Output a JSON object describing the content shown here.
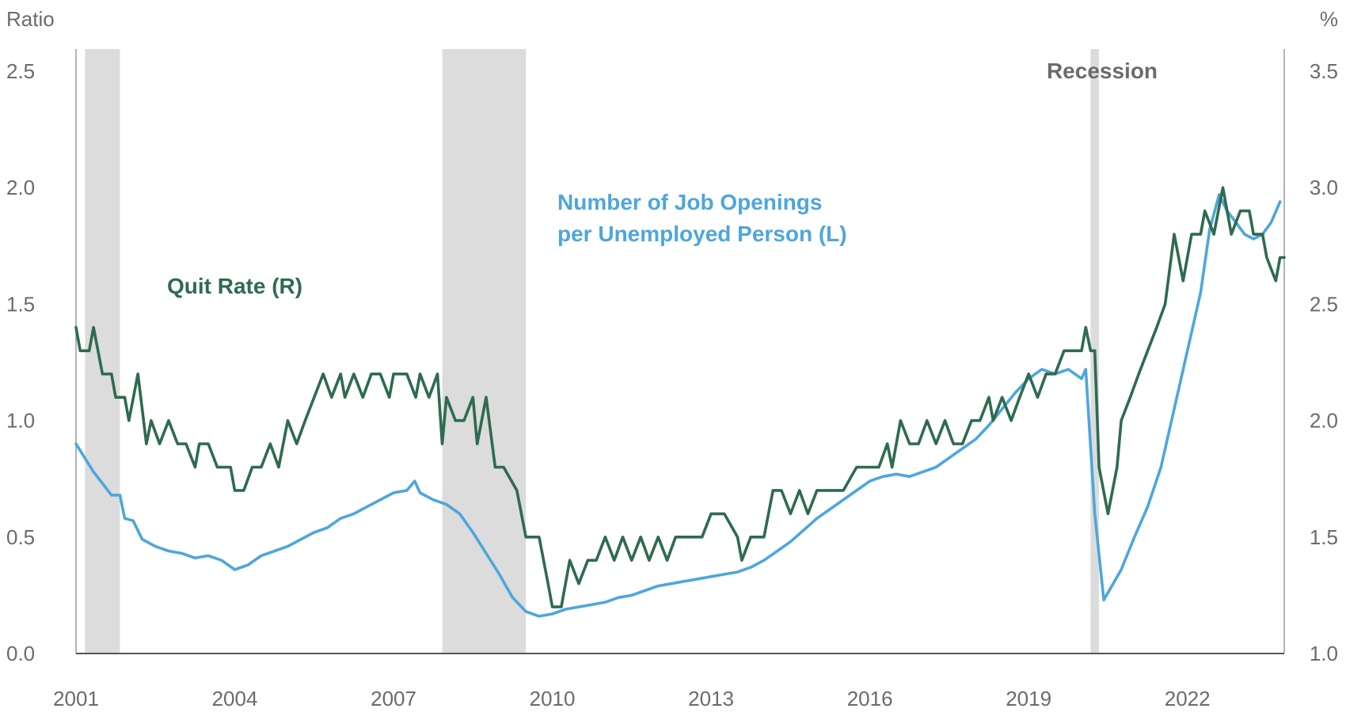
{
  "chart_data": {
    "type": "line",
    "title": "",
    "xlabel": "",
    "left_axis": {
      "unit_label": "Ratio",
      "ylim": [
        0.0,
        2.5
      ],
      "ticks": [
        "0.0",
        "0.5",
        "1.0",
        "1.5",
        "2.0",
        "2.5"
      ]
    },
    "right_axis": {
      "unit_label": "%",
      "ylim": [
        1.0,
        3.5
      ],
      "ticks": [
        "1.0",
        "1.5",
        "2.0",
        "2.5",
        "3.0",
        "3.5"
      ]
    },
    "x_axis": {
      "range": [
        2001.0,
        2023.83
      ],
      "ticks": [
        "2001",
        "2004",
        "2007",
        "2010",
        "2013",
        "2016",
        "2019",
        "2022"
      ]
    },
    "recession_label": "Recession",
    "recessions": [
      [
        2001.17,
        2001.83
      ],
      [
        2007.92,
        2009.5
      ],
      [
        2020.17,
        2020.33
      ]
    ],
    "colors": {
      "quit_rate": "#2e6b4f",
      "job_openings": "#4ea6dc",
      "recession": "#dcdcdc",
      "axis": "#6b6b6b"
    },
    "annotations": {
      "quit_rate": "Quit Rate (R)",
      "job_openings_line1": "Number of Job Openings",
      "job_openings_line2": "per Unemployed Person (L)"
    },
    "series": [
      {
        "name": "Number of Job Openings per Unemployed Person (L)",
        "axis": "left",
        "points": [
          [
            2001.0,
            0.9
          ],
          [
            2001.33,
            0.78
          ],
          [
            2001.67,
            0.68
          ],
          [
            2001.83,
            0.68
          ],
          [
            2001.92,
            0.58
          ],
          [
            2002.08,
            0.57
          ],
          [
            2002.25,
            0.49
          ],
          [
            2002.5,
            0.46
          ],
          [
            2002.75,
            0.44
          ],
          [
            2003.0,
            0.43
          ],
          [
            2003.25,
            0.41
          ],
          [
            2003.5,
            0.42
          ],
          [
            2003.75,
            0.4
          ],
          [
            2004.0,
            0.36
          ],
          [
            2004.25,
            0.38
          ],
          [
            2004.5,
            0.42
          ],
          [
            2004.75,
            0.44
          ],
          [
            2005.0,
            0.46
          ],
          [
            2005.25,
            0.49
          ],
          [
            2005.5,
            0.52
          ],
          [
            2005.75,
            0.54
          ],
          [
            2006.0,
            0.58
          ],
          [
            2006.25,
            0.6
          ],
          [
            2006.5,
            0.63
          ],
          [
            2006.75,
            0.66
          ],
          [
            2007.0,
            0.69
          ],
          [
            2007.25,
            0.7
          ],
          [
            2007.4,
            0.74
          ],
          [
            2007.5,
            0.69
          ],
          [
            2007.75,
            0.66
          ],
          [
            2008.0,
            0.64
          ],
          [
            2008.25,
            0.6
          ],
          [
            2008.5,
            0.52
          ],
          [
            2008.75,
            0.43
          ],
          [
            2009.0,
            0.34
          ],
          [
            2009.25,
            0.24
          ],
          [
            2009.5,
            0.18
          ],
          [
            2009.75,
            0.16
          ],
          [
            2010.0,
            0.17
          ],
          [
            2010.25,
            0.19
          ],
          [
            2010.5,
            0.2
          ],
          [
            2010.75,
            0.21
          ],
          [
            2011.0,
            0.22
          ],
          [
            2011.25,
            0.24
          ],
          [
            2011.5,
            0.25
          ],
          [
            2011.75,
            0.27
          ],
          [
            2012.0,
            0.29
          ],
          [
            2012.25,
            0.3
          ],
          [
            2012.5,
            0.31
          ],
          [
            2012.75,
            0.32
          ],
          [
            2013.0,
            0.33
          ],
          [
            2013.25,
            0.34
          ],
          [
            2013.5,
            0.35
          ],
          [
            2013.75,
            0.37
          ],
          [
            2014.0,
            0.4
          ],
          [
            2014.25,
            0.44
          ],
          [
            2014.5,
            0.48
          ],
          [
            2014.75,
            0.53
          ],
          [
            2015.0,
            0.58
          ],
          [
            2015.25,
            0.62
          ],
          [
            2015.5,
            0.66
          ],
          [
            2015.75,
            0.7
          ],
          [
            2016.0,
            0.74
          ],
          [
            2016.25,
            0.76
          ],
          [
            2016.5,
            0.77
          ],
          [
            2016.75,
            0.76
          ],
          [
            2017.0,
            0.78
          ],
          [
            2017.25,
            0.8
          ],
          [
            2017.5,
            0.84
          ],
          [
            2017.75,
            0.88
          ],
          [
            2018.0,
            0.92
          ],
          [
            2018.25,
            0.98
          ],
          [
            2018.5,
            1.05
          ],
          [
            2018.75,
            1.12
          ],
          [
            2019.0,
            1.18
          ],
          [
            2019.25,
            1.22
          ],
          [
            2019.5,
            1.2
          ],
          [
            2019.75,
            1.22
          ],
          [
            2020.0,
            1.18
          ],
          [
            2020.08,
            1.22
          ],
          [
            2020.25,
            0.6
          ],
          [
            2020.42,
            0.23
          ],
          [
            2020.75,
            0.36
          ],
          [
            2021.0,
            0.5
          ],
          [
            2021.25,
            0.63
          ],
          [
            2021.5,
            0.8
          ],
          [
            2021.75,
            1.05
          ],
          [
            2022.0,
            1.3
          ],
          [
            2022.25,
            1.55
          ],
          [
            2022.42,
            1.82
          ],
          [
            2022.6,
            1.97
          ],
          [
            2022.75,
            1.9
          ],
          [
            2022.92,
            1.85
          ],
          [
            2023.08,
            1.8
          ],
          [
            2023.25,
            1.78
          ],
          [
            2023.42,
            1.8
          ],
          [
            2023.58,
            1.85
          ],
          [
            2023.75,
            1.94
          ]
        ]
      },
      {
        "name": "Quit Rate (R)",
        "axis": "right",
        "points": [
          [
            2001.0,
            2.4
          ],
          [
            2001.08,
            2.3
          ],
          [
            2001.25,
            2.3
          ],
          [
            2001.33,
            2.4
          ],
          [
            2001.5,
            2.2
          ],
          [
            2001.67,
            2.2
          ],
          [
            2001.75,
            2.1
          ],
          [
            2001.92,
            2.1
          ],
          [
            2002.0,
            2.0
          ],
          [
            2002.17,
            2.2
          ],
          [
            2002.33,
            1.9
          ],
          [
            2002.42,
            2.0
          ],
          [
            2002.58,
            1.9
          ],
          [
            2002.75,
            2.0
          ],
          [
            2002.92,
            1.9
          ],
          [
            2003.08,
            1.9
          ],
          [
            2003.25,
            1.8
          ],
          [
            2003.33,
            1.9
          ],
          [
            2003.5,
            1.9
          ],
          [
            2003.67,
            1.8
          ],
          [
            2003.92,
            1.8
          ],
          [
            2004.0,
            1.7
          ],
          [
            2004.17,
            1.7
          ],
          [
            2004.33,
            1.8
          ],
          [
            2004.5,
            1.8
          ],
          [
            2004.67,
            1.9
          ],
          [
            2004.83,
            1.8
          ],
          [
            2005.0,
            2.0
          ],
          [
            2005.17,
            1.9
          ],
          [
            2005.33,
            2.0
          ],
          [
            2005.5,
            2.1
          ],
          [
            2005.67,
            2.2
          ],
          [
            2005.83,
            2.1
          ],
          [
            2006.0,
            2.2
          ],
          [
            2006.08,
            2.1
          ],
          [
            2006.25,
            2.2
          ],
          [
            2006.42,
            2.1
          ],
          [
            2006.58,
            2.2
          ],
          [
            2006.75,
            2.2
          ],
          [
            2006.92,
            2.1
          ],
          [
            2007.0,
            2.2
          ],
          [
            2007.25,
            2.2
          ],
          [
            2007.42,
            2.1
          ],
          [
            2007.5,
            2.2
          ],
          [
            2007.67,
            2.1
          ],
          [
            2007.83,
            2.2
          ],
          [
            2007.92,
            1.9
          ],
          [
            2008.0,
            2.1
          ],
          [
            2008.17,
            2.0
          ],
          [
            2008.33,
            2.0
          ],
          [
            2008.5,
            2.1
          ],
          [
            2008.58,
            1.9
          ],
          [
            2008.75,
            2.1
          ],
          [
            2008.92,
            1.8
          ],
          [
            2009.08,
            1.8
          ],
          [
            2009.33,
            1.7
          ],
          [
            2009.5,
            1.5
          ],
          [
            2009.75,
            1.5
          ],
          [
            2009.92,
            1.3
          ],
          [
            2010.0,
            1.2
          ],
          [
            2010.17,
            1.2
          ],
          [
            2010.33,
            1.4
          ],
          [
            2010.5,
            1.3
          ],
          [
            2010.67,
            1.4
          ],
          [
            2010.83,
            1.4
          ],
          [
            2011.0,
            1.5
          ],
          [
            2011.17,
            1.4
          ],
          [
            2011.33,
            1.5
          ],
          [
            2011.5,
            1.4
          ],
          [
            2011.67,
            1.5
          ],
          [
            2011.83,
            1.4
          ],
          [
            2012.0,
            1.5
          ],
          [
            2012.17,
            1.4
          ],
          [
            2012.33,
            1.5
          ],
          [
            2012.5,
            1.5
          ],
          [
            2012.83,
            1.5
          ],
          [
            2013.0,
            1.6
          ],
          [
            2013.25,
            1.6
          ],
          [
            2013.5,
            1.5
          ],
          [
            2013.58,
            1.4
          ],
          [
            2013.75,
            1.5
          ],
          [
            2014.0,
            1.5
          ],
          [
            2014.17,
            1.7
          ],
          [
            2014.33,
            1.7
          ],
          [
            2014.5,
            1.6
          ],
          [
            2014.67,
            1.7
          ],
          [
            2014.83,
            1.6
          ],
          [
            2015.0,
            1.7
          ],
          [
            2015.25,
            1.7
          ],
          [
            2015.5,
            1.7
          ],
          [
            2015.75,
            1.8
          ],
          [
            2016.0,
            1.8
          ],
          [
            2016.17,
            1.8
          ],
          [
            2016.33,
            1.9
          ],
          [
            2016.42,
            1.8
          ],
          [
            2016.58,
            2.0
          ],
          [
            2016.75,
            1.9
          ],
          [
            2016.92,
            1.9
          ],
          [
            2017.08,
            2.0
          ],
          [
            2017.25,
            1.9
          ],
          [
            2017.42,
            2.0
          ],
          [
            2017.58,
            1.9
          ],
          [
            2017.75,
            1.9
          ],
          [
            2017.92,
            2.0
          ],
          [
            2018.08,
            2.0
          ],
          [
            2018.25,
            2.1
          ],
          [
            2018.33,
            2.0
          ],
          [
            2018.5,
            2.1
          ],
          [
            2018.67,
            2.0
          ],
          [
            2018.83,
            2.1
          ],
          [
            2019.0,
            2.2
          ],
          [
            2019.17,
            2.1
          ],
          [
            2019.33,
            2.2
          ],
          [
            2019.5,
            2.2
          ],
          [
            2019.67,
            2.3
          ],
          [
            2019.83,
            2.3
          ],
          [
            2020.0,
            2.3
          ],
          [
            2020.08,
            2.4
          ],
          [
            2020.17,
            2.3
          ],
          [
            2020.25,
            2.3
          ],
          [
            2020.33,
            1.8
          ],
          [
            2020.5,
            1.6
          ],
          [
            2020.67,
            1.8
          ],
          [
            2020.75,
            2.0
          ],
          [
            2020.92,
            2.1
          ],
          [
            2021.08,
            2.2
          ],
          [
            2021.25,
            2.3
          ],
          [
            2021.42,
            2.4
          ],
          [
            2021.58,
            2.5
          ],
          [
            2021.75,
            2.8
          ],
          [
            2021.92,
            2.6
          ],
          [
            2022.08,
            2.8
          ],
          [
            2022.25,
            2.8
          ],
          [
            2022.33,
            2.9
          ],
          [
            2022.5,
            2.8
          ],
          [
            2022.67,
            3.0
          ],
          [
            2022.83,
            2.8
          ],
          [
            2023.0,
            2.9
          ],
          [
            2023.17,
            2.9
          ],
          [
            2023.25,
            2.8
          ],
          [
            2023.42,
            2.8
          ],
          [
            2023.5,
            2.7
          ],
          [
            2023.67,
            2.6
          ],
          [
            2023.75,
            2.7
          ],
          [
            2023.83,
            2.7
          ]
        ]
      }
    ]
  }
}
